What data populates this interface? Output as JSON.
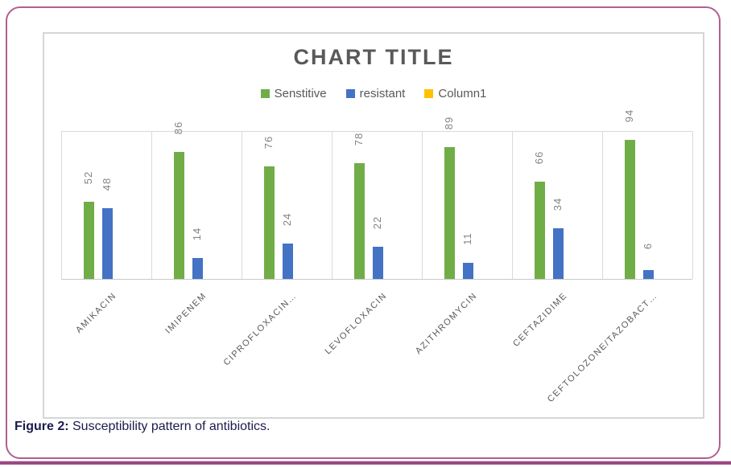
{
  "figure": {
    "caption_label": "Figure 2:",
    "caption_text": " Susceptibility pattern of antibiotics."
  },
  "colors": {
    "frame_border": "#b25f90",
    "bottom_edge": "#9a4a83",
    "chart_border": "#d6d6d6",
    "gridline": "#d9d9d9",
    "axis_line": "#c9c9c9",
    "title_text": "#595959",
    "legend_text": "#595959",
    "value_label_text": "#848484",
    "category_text": "#595959",
    "caption_text": "#1b1b4d",
    "sensitive_green": "#70ad47",
    "resistant_blue": "#4472c4",
    "column1_yellow": "#ffc000"
  },
  "chart_data": {
    "type": "bar",
    "title": "CHART TITLE",
    "categories": [
      "AMIKACIN",
      "IMIPENEM",
      "CIPROFLOXACIN…",
      "LEVOFLOXACIN",
      "AZITHROMYCIN",
      "CEFTAZIDIME",
      "CEFTOLOZONE/TAZOBACT…"
    ],
    "series": [
      {
        "name": "Senstitive",
        "color": "#70ad47",
        "values": [
          52,
          86,
          76,
          78,
          89,
          66,
          94
        ]
      },
      {
        "name": "resistant",
        "color": "#4472c4",
        "values": [
          48,
          14,
          24,
          22,
          11,
          34,
          6
        ]
      },
      {
        "name": "Column1",
        "color": "#ffc000",
        "values": [
          null,
          null,
          null,
          null,
          null,
          null,
          null
        ]
      }
    ],
    "ylim": [
      0,
      100
    ],
    "grid": "vertical lines at category boundaries, horizontal line at top (100)",
    "legend_position": "top-center",
    "value_labels": "rotated 90° above bars",
    "category_labels": "rotated 45° below axis"
  }
}
